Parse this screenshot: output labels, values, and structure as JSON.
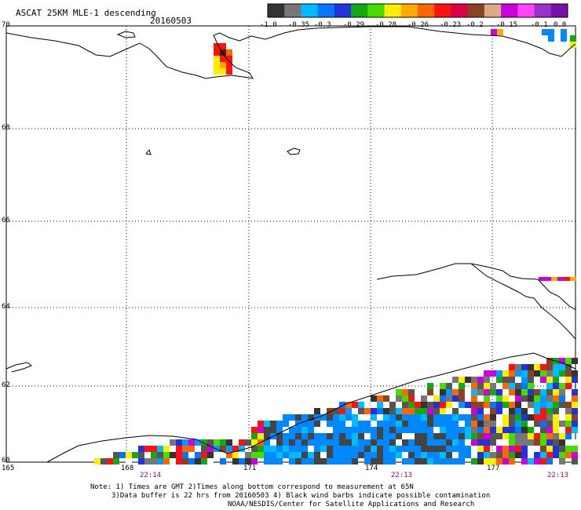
{
  "header": {
    "title": "ASCAT 25KM MLE-1 descending",
    "date": "20160503"
  },
  "colorbar": {
    "colors": [
      "#333333",
      "#777777",
      "#00bbff",
      "#0077ff",
      "#2233dd",
      "#11aa11",
      "#44dd00",
      "#ffee00",
      "#ffaa00",
      "#ff6600",
      "#ff1111",
      "#dd0044",
      "#884422",
      "#ddaa88",
      "#cc00dd",
      "#ff44ff",
      "#9933cc",
      "#7711aa"
    ],
    "labels": [
      "-1.0",
      "-0.35",
      "-0.3",
      "-0.29",
      "-0.28",
      "-0.26",
      "-0.23",
      "-0.2",
      "-0.15",
      "-0.1",
      "0.0"
    ]
  },
  "axes": {
    "lat_labels": [
      "70",
      "68",
      "66",
      "64",
      "62",
      "60"
    ],
    "lon_labels": [
      "165",
      "168",
      "171",
      "174",
      "177"
    ],
    "time_labels": [
      "22:14",
      "22:13",
      "22:13"
    ]
  },
  "footer": {
    "line1": "Note: 1) Times are GMT 2)Times along bottom correspond to measurement at 65N",
    "line2": "3)Data buffer is 22 hrs from 20160503 4) Black wind barbs indicate possible contamination",
    "line3": "NOAA/NESDIS/Center for Satellite Applications and Research"
  }
}
